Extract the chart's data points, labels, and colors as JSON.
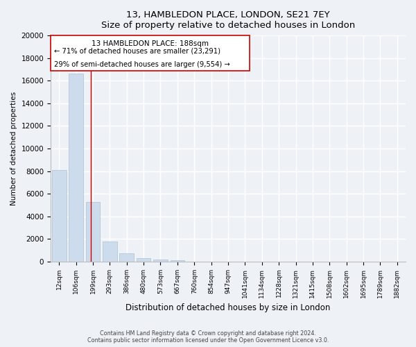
{
  "title": "13, HAMBLEDON PLACE, LONDON, SE21 7EY",
  "subtitle": "Size of property relative to detached houses in London",
  "xlabel": "Distribution of detached houses by size in London",
  "ylabel": "Number of detached properties",
  "bar_labels": [
    "12sqm",
    "106sqm",
    "199sqm",
    "293sqm",
    "386sqm",
    "480sqm",
    "573sqm",
    "667sqm",
    "760sqm",
    "854sqm",
    "947sqm",
    "1041sqm",
    "1134sqm",
    "1228sqm",
    "1321sqm",
    "1415sqm",
    "1508sqm",
    "1602sqm",
    "1695sqm",
    "1789sqm",
    "1882sqm"
  ],
  "bar_values": [
    8100,
    16600,
    5300,
    1800,
    750,
    300,
    200,
    100,
    0,
    0,
    0,
    0,
    0,
    0,
    0,
    0,
    0,
    0,
    0,
    0,
    0
  ],
  "bar_color": "#ccdcec",
  "bar_edge_color": "#aac0d4",
  "property_line_x": 1.88,
  "property_line_color": "#cc0000",
  "ylim": [
    0,
    20000
  ],
  "yticks": [
    0,
    2000,
    4000,
    6000,
    8000,
    10000,
    12000,
    14000,
    16000,
    18000,
    20000
  ],
  "annotation_title": "13 HAMBLEDON PLACE: 188sqm",
  "annotation_line1": "← 71% of detached houses are smaller (23,291)",
  "annotation_line2": "29% of semi-detached houses are larger (9,554) →",
  "footer1": "Contains HM Land Registry data © Crown copyright and database right 2024.",
  "footer2": "Contains public sector information licensed under the Open Government Licence v3.0.",
  "background_color": "#eef2f7",
  "plot_background_color": "#eef2f7",
  "grid_color": "#ffffff"
}
